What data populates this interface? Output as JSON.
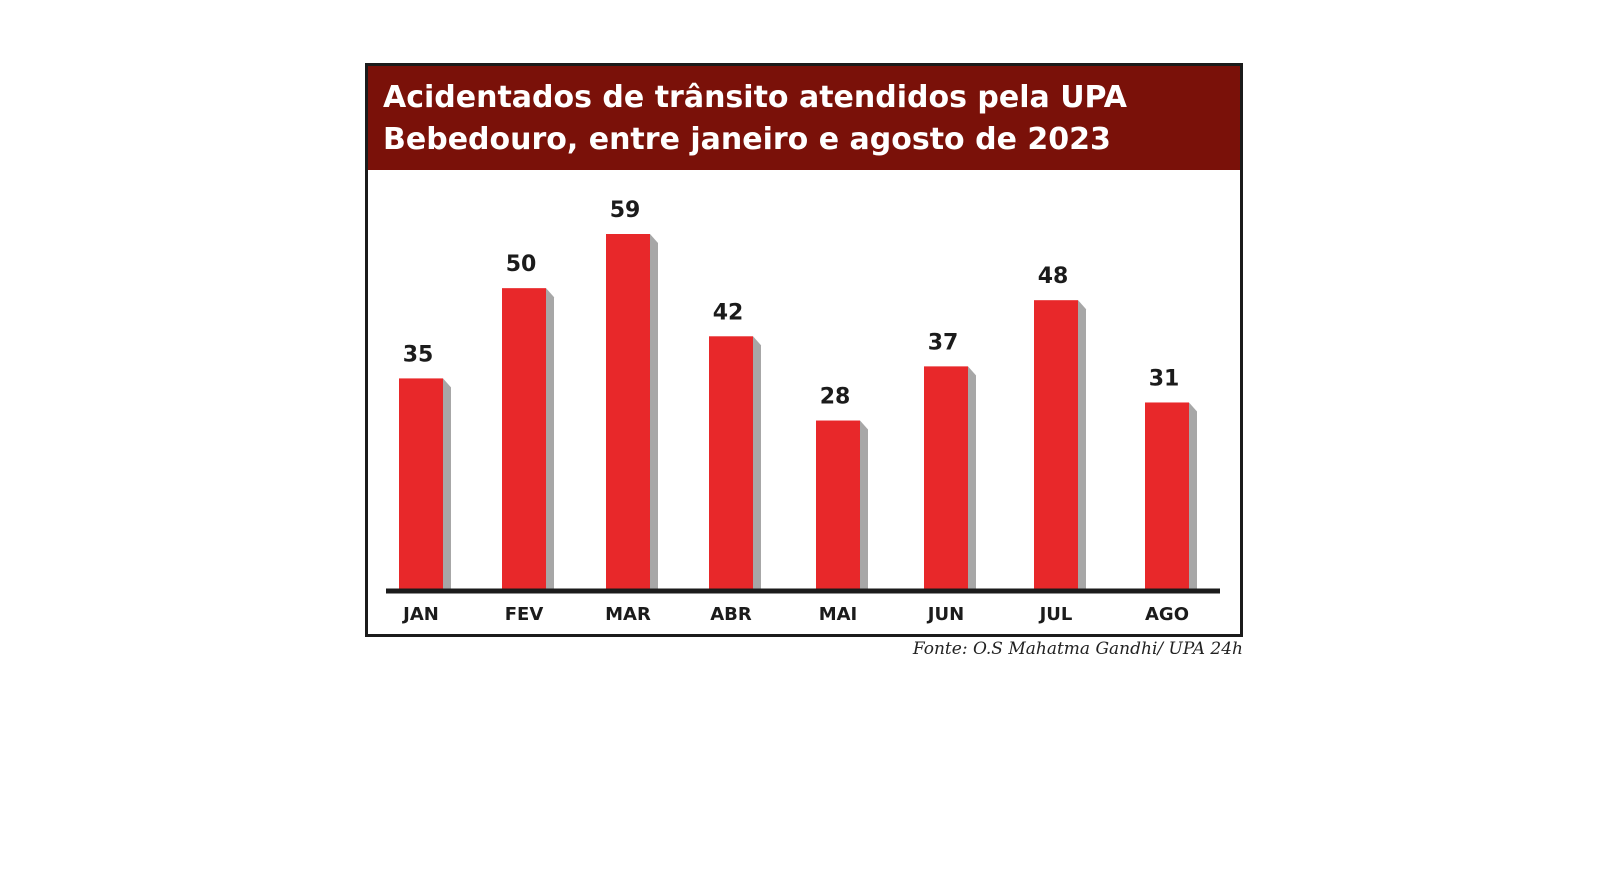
{
  "chart_data": {
    "type": "bar",
    "title": "Acidentados de trânsito atendidos pela UPA Bebedouro, entre janeiro e agosto de 2023",
    "title_lines": [
      "Acidentados de trânsito atendidos pela UPA",
      "Bebedouro, entre janeiro e agosto de 2023"
    ],
    "categories": [
      "JAN",
      "FEV",
      "MAR",
      "ABR",
      "MAI",
      "JUN",
      "JUL",
      "AGO"
    ],
    "values": [
      35,
      50,
      59,
      42,
      28,
      37,
      48,
      31
    ],
    "value_labels": [
      "35",
      "50",
      "59",
      "42",
      "28",
      "37",
      "48",
      "31"
    ],
    "xlabel": "",
    "ylabel": "",
    "ylim": [
      0,
      59
    ],
    "grid": false,
    "legend": "none",
    "source": "Fonte: O.S Mahatma Gandhi/ UPA 24h"
  },
  "colors": {
    "title_background": "#7a1109",
    "title_text": "#ffffff",
    "bar": "#e8282a",
    "bar_shadow": "#a7a7a7",
    "baseline": "#1b1b1b",
    "label_text": "#1b1b1b"
  }
}
